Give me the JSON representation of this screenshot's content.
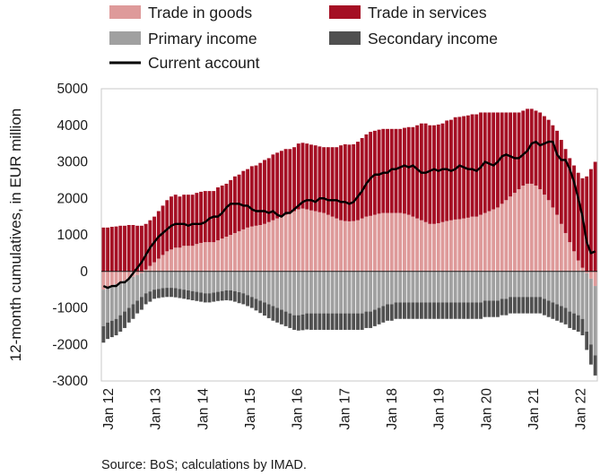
{
  "chart_data": {
    "type": "bar",
    "subtype": "stacked-bar-with-line",
    "ylabel": "12-month cumulatives, in EUR million",
    "ylim": [
      -3000,
      5000
    ],
    "y_ticks": [
      "5000",
      "4000",
      "3000",
      "2000",
      "1000",
      "0",
      "-1000",
      "-2000",
      "-3000"
    ],
    "x_ticks": [
      "Jan 12",
      "Jan 13",
      "Jan 14",
      "Jan 15",
      "Jan 16",
      "Jan 17",
      "Jan 18",
      "Jan 19",
      "Jan 20",
      "Jan 21",
      "Jan 22"
    ],
    "legend_position": "top",
    "grid": false,
    "source": "Source: BoS; calculations by IMAD.",
    "series": [
      {
        "name": "Trade in goods",
        "kind": "bar",
        "color": "#de9a9a",
        "values": [
          -500,
          -450,
          -400,
          -350,
          -300,
          -250,
          -200,
          -150,
          -100,
          -50,
          50,
          150,
          250,
          350,
          450,
          550,
          600,
          650,
          650,
          700,
          700,
          700,
          750,
          780,
          800,
          800,
          800,
          850,
          900,
          950,
          1000,
          1050,
          1100,
          1150,
          1200,
          1230,
          1250,
          1270,
          1300,
          1350,
          1400,
          1450,
          1500,
          1550,
          1600,
          1650,
          1700,
          1720,
          1700,
          1670,
          1650,
          1620,
          1600,
          1550,
          1500,
          1450,
          1400,
          1380,
          1370,
          1380,
          1400,
          1450,
          1500,
          1520,
          1550,
          1580,
          1600,
          1600,
          1600,
          1600,
          1600,
          1580,
          1550,
          1500,
          1450,
          1400,
          1350,
          1300,
          1300,
          1320,
          1350,
          1380,
          1400,
          1420,
          1430,
          1450,
          1470,
          1500,
          1500,
          1550,
          1600,
          1650,
          1700,
          1750,
          1850,
          1950,
          2050,
          2150,
          2250,
          2350,
          2400,
          2400,
          2350,
          2250,
          2100,
          1950,
          1750,
          1550,
          1300,
          1050,
          800,
          550,
          300,
          100,
          -50,
          -200,
          -400
        ]
      },
      {
        "name": "Trade in services",
        "kind": "bar",
        "color": "#a50f24",
        "values": [
          1200,
          1200,
          1220,
          1230,
          1250,
          1250,
          1270,
          1270,
          1250,
          1250,
          1250,
          1250,
          1250,
          1300,
          1350,
          1400,
          1450,
          1450,
          1400,
          1400,
          1400,
          1400,
          1400,
          1400,
          1400,
          1400,
          1400,
          1450,
          1450,
          1450,
          1500,
          1550,
          1550,
          1600,
          1600,
          1650,
          1650,
          1700,
          1750,
          1750,
          1800,
          1800,
          1800,
          1800,
          1750,
          1750,
          1800,
          1800,
          1800,
          1800,
          1800,
          1800,
          1800,
          1850,
          1900,
          1950,
          2050,
          2100,
          2100,
          2100,
          2150,
          2200,
          2250,
          2300,
          2300,
          2300,
          2300,
          2300,
          2300,
          2300,
          2300,
          2350,
          2400,
          2450,
          2550,
          2650,
          2700,
          2700,
          2700,
          2700,
          2700,
          2750,
          2750,
          2800,
          2800,
          2800,
          2800,
          2800,
          2800,
          2800,
          2750,
          2700,
          2650,
          2600,
          2500,
          2400,
          2300,
          2200,
          2100,
          2050,
          2050,
          2050,
          2050,
          2100,
          2150,
          2200,
          2250,
          2300,
          2300,
          2300,
          2300,
          2350,
          2400,
          2450,
          2600,
          2800,
          3000
        ]
      },
      {
        "name": "Primary income",
        "kind": "bar",
        "color": "#a0a0a0",
        "values": [
          -1000,
          -950,
          -950,
          -950,
          -900,
          -850,
          -800,
          -750,
          -700,
          -650,
          -600,
          -550,
          -500,
          -480,
          -460,
          -450,
          -450,
          -460,
          -480,
          -500,
          -520,
          -540,
          -560,
          -580,
          -600,
          -600,
          -580,
          -560,
          -540,
          -520,
          -520,
          -540,
          -570,
          -600,
          -650,
          -700,
          -750,
          -800,
          -850,
          -900,
          -950,
          -1000,
          -1050,
          -1100,
          -1150,
          -1200,
          -1200,
          -1180,
          -1150,
          -1150,
          -1150,
          -1150,
          -1150,
          -1150,
          -1150,
          -1150,
          -1150,
          -1150,
          -1150,
          -1150,
          -1150,
          -1150,
          -1100,
          -1100,
          -1050,
          -1000,
          -950,
          -900,
          -900,
          -850,
          -850,
          -850,
          -850,
          -850,
          -850,
          -850,
          -850,
          -850,
          -850,
          -850,
          -850,
          -850,
          -850,
          -850,
          -850,
          -850,
          -850,
          -850,
          -850,
          -850,
          -800,
          -800,
          -800,
          -800,
          -750,
          -750,
          -700,
          -700,
          -700,
          -700,
          -700,
          -700,
          -700,
          -700,
          -750,
          -800,
          -850,
          -900,
          -950,
          -1000,
          -1100,
          -1150,
          -1200,
          -1300,
          -1600,
          -1800,
          -1900
        ]
      },
      {
        "name": "Secondary income",
        "kind": "bar",
        "color": "#505050",
        "values": [
          -450,
          -450,
          -450,
          -450,
          -450,
          -450,
          -400,
          -400,
          -350,
          -350,
          -300,
          -280,
          -250,
          -250,
          -250,
          -250,
          -250,
          -250,
          -250,
          -250,
          -250,
          -250,
          -250,
          -250,
          -250,
          -250,
          -250,
          -250,
          -260,
          -270,
          -280,
          -290,
          -300,
          -300,
          -300,
          -300,
          -320,
          -340,
          -360,
          -380,
          -400,
          -400,
          -400,
          -400,
          -400,
          -400,
          -420,
          -430,
          -440,
          -450,
          -450,
          -450,
          -450,
          -450,
          -450,
          -450,
          -450,
          -450,
          -450,
          -450,
          -450,
          -450,
          -450,
          -450,
          -450,
          -450,
          -450,
          -450,
          -450,
          -450,
          -450,
          -450,
          -450,
          -450,
          -450,
          -450,
          -450,
          -450,
          -450,
          -450,
          -450,
          -450,
          -450,
          -450,
          -450,
          -450,
          -450,
          -450,
          -450,
          -450,
          -450,
          -450,
          -450,
          -450,
          -450,
          -450,
          -450,
          -450,
          -450,
          -450,
          -450,
          -450,
          -450,
          -450,
          -450,
          -450,
          -450,
          -450,
          -450,
          -450,
          -450,
          -450,
          -450,
          -450,
          -500,
          -550,
          -550
        ]
      },
      {
        "name": "Current account",
        "kind": "line",
        "color": "#000000",
        "values": [
          -400,
          -450,
          -400,
          -400,
          -300,
          -300,
          -200,
          -50,
          100,
          250,
          450,
          650,
          800,
          950,
          1050,
          1150,
          1250,
          1300,
          1300,
          1300,
          1250,
          1300,
          1300,
          1300,
          1350,
          1450,
          1500,
          1500,
          1600,
          1750,
          1850,
          1850,
          1850,
          1800,
          1800,
          1700,
          1650,
          1650,
          1650,
          1600,
          1650,
          1550,
          1500,
          1600,
          1600,
          1700,
          1800,
          1900,
          1950,
          1950,
          1900,
          2000,
          2000,
          1950,
          1950,
          1950,
          1900,
          1900,
          1850,
          1900,
          2050,
          2200,
          2400,
          2550,
          2650,
          2650,
          2700,
          2700,
          2800,
          2800,
          2850,
          2900,
          2850,
          2900,
          2800,
          2700,
          2700,
          2750,
          2800,
          2750,
          2800,
          2800,
          2750,
          2800,
          2900,
          2850,
          2800,
          2800,
          2750,
          2850,
          3000,
          2950,
          2900,
          3000,
          3150,
          3200,
          3150,
          3100,
          3100,
          3200,
          3300,
          3500,
          3550,
          3450,
          3500,
          3550,
          3550,
          3200,
          3050,
          3050,
          2800,
          2450,
          2000,
          1500,
          800,
          500,
          550
        ]
      }
    ]
  }
}
